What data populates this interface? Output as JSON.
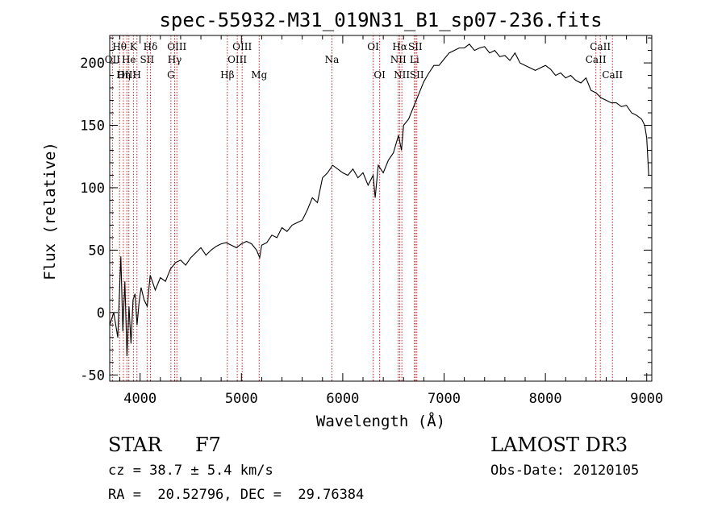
{
  "chart_data": {
    "type": "line",
    "title": "spec-55932-M31_019N31_B1_sp07-236.fits",
    "xlabel": "Wavelength (Å)",
    "ylabel": "Flux (relative)",
    "xlim": [
      3700,
      9050
    ],
    "ylim": [
      -55,
      222
    ],
    "xticks": [
      4000,
      5000,
      6000,
      7000,
      8000,
      9000
    ],
    "yticks": [
      -50,
      0,
      50,
      100,
      150,
      200
    ],
    "grid": false,
    "series": [
      {
        "name": "spectrum",
        "x": [
          3700,
          3740,
          3780,
          3810,
          3830,
          3850,
          3870,
          3890,
          3910,
          3930,
          3950,
          3970,
          3990,
          4010,
          4040,
          4070,
          4100,
          4150,
          4200,
          4250,
          4300,
          4350,
          4400,
          4450,
          4500,
          4550,
          4600,
          4650,
          4700,
          4750,
          4800,
          4850,
          4900,
          4950,
          5000,
          5050,
          5100,
          5150,
          5180,
          5200,
          5250,
          5300,
          5350,
          5400,
          5450,
          5500,
          5550,
          5600,
          5650,
          5700,
          5750,
          5800,
          5850,
          5900,
          5950,
          6000,
          6050,
          6100,
          6150,
          6200,
          6250,
          6300,
          6320,
          6350,
          6400,
          6450,
          6500,
          6550,
          6580,
          6600,
          6650,
          6700,
          6750,
          6800,
          6850,
          6900,
          6950,
          7000,
          7050,
          7100,
          7150,
          7200,
          7250,
          7300,
          7350,
          7400,
          7450,
          7500,
          7550,
          7600,
          7650,
          7700,
          7750,
          7800,
          7850,
          7900,
          7950,
          8000,
          8050,
          8100,
          8150,
          8200,
          8250,
          8300,
          8350,
          8400,
          8450,
          8500,
          8550,
          8600,
          8650,
          8700,
          8750,
          8800,
          8850,
          8900,
          8950,
          8980,
          9000,
          9020
        ],
        "y": [
          -10,
          0,
          -20,
          45,
          -15,
          25,
          -35,
          5,
          -25,
          10,
          15,
          -10,
          8,
          20,
          10,
          5,
          30,
          18,
          28,
          25,
          35,
          40,
          42,
          38,
          44,
          48,
          52,
          46,
          50,
          53,
          55,
          56,
          54,
          52,
          55,
          57,
          55,
          50,
          44,
          54,
          56,
          62,
          60,
          68,
          65,
          70,
          72,
          74,
          82,
          92,
          88,
          108,
          112,
          118,
          115,
          112,
          110,
          115,
          108,
          112,
          102,
          110,
          92,
          118,
          112,
          122,
          128,
          142,
          130,
          150,
          155,
          165,
          175,
          185,
          192,
          198,
          198,
          203,
          208,
          210,
          212,
          212,
          215,
          210,
          212,
          213,
          208,
          210,
          205,
          206,
          202,
          208,
          200,
          198,
          196,
          194,
          196,
          198,
          195,
          190,
          192,
          188,
          190,
          186,
          184,
          188,
          178,
          176,
          172,
          170,
          168,
          168,
          165,
          166,
          160,
          158,
          155,
          150,
          140,
          110
        ]
      }
    ],
    "lines": [
      {
        "label": "Hθ",
        "x": 3797,
        "row": 1
      },
      {
        "label": "OII",
        "x": 3727,
        "row": 2
      },
      {
        "label": "OIII",
        "x": 3869,
        "row": 3
      },
      {
        "label": "Hη",
        "x": 3835,
        "row": 3
      },
      {
        "label": "K",
        "x": 3934,
        "row": 1
      },
      {
        "label": "He",
        "x": 3889,
        "row": 2
      },
      {
        "label": "H",
        "x": 3969,
        "row": 3
      },
      {
        "label": "SII",
        "x": 4069,
        "row": 2
      },
      {
        "label": "Hδ",
        "x": 4102,
        "row": 1
      },
      {
        "label": "OIII",
        "x": 4363,
        "row": 1
      },
      {
        "label": "Hγ",
        "x": 4341,
        "row": 2
      },
      {
        "label": "G",
        "x": 4304,
        "row": 3
      },
      {
        "label": "Hβ",
        "x": 4861,
        "row": 3
      },
      {
        "label": "OIII",
        "x": 5007,
        "row": 1
      },
      {
        "label": "OIII",
        "x": 4959,
        "row": 2
      },
      {
        "label": "Mg",
        "x": 5175,
        "row": 3
      },
      {
        "label": "Na",
        "x": 5893,
        "row": 2
      },
      {
        "label": "OI",
        "x": 6300,
        "row": 1
      },
      {
        "label": "OI",
        "x": 6364,
        "row": 3
      },
      {
        "label": "Hα",
        "x": 6563,
        "row": 1
      },
      {
        "label": "SII",
        "x": 6716,
        "row": 1
      },
      {
        "label": "NII",
        "x": 6548,
        "row": 2
      },
      {
        "label": "Li",
        "x": 6708,
        "row": 2
      },
      {
        "label": "NII",
        "x": 6583,
        "row": 3
      },
      {
        "label": "SII",
        "x": 6731,
        "row": 3
      },
      {
        "label": "CaII",
        "x": 8542,
        "row": 1
      },
      {
        "label": "CaII",
        "x": 8498,
        "row": 2
      },
      {
        "label": "CaII",
        "x": 8662,
        "row": 3
      }
    ]
  },
  "info": {
    "class": "STAR",
    "subclass": "F7",
    "survey": "LAMOST DR3",
    "redshift": "cz = 38.7 ± 5.4 km/s",
    "obs_date": "Obs-Date: 20120105",
    "coords": "RA =  20.52796, DEC =  29.76384"
  }
}
